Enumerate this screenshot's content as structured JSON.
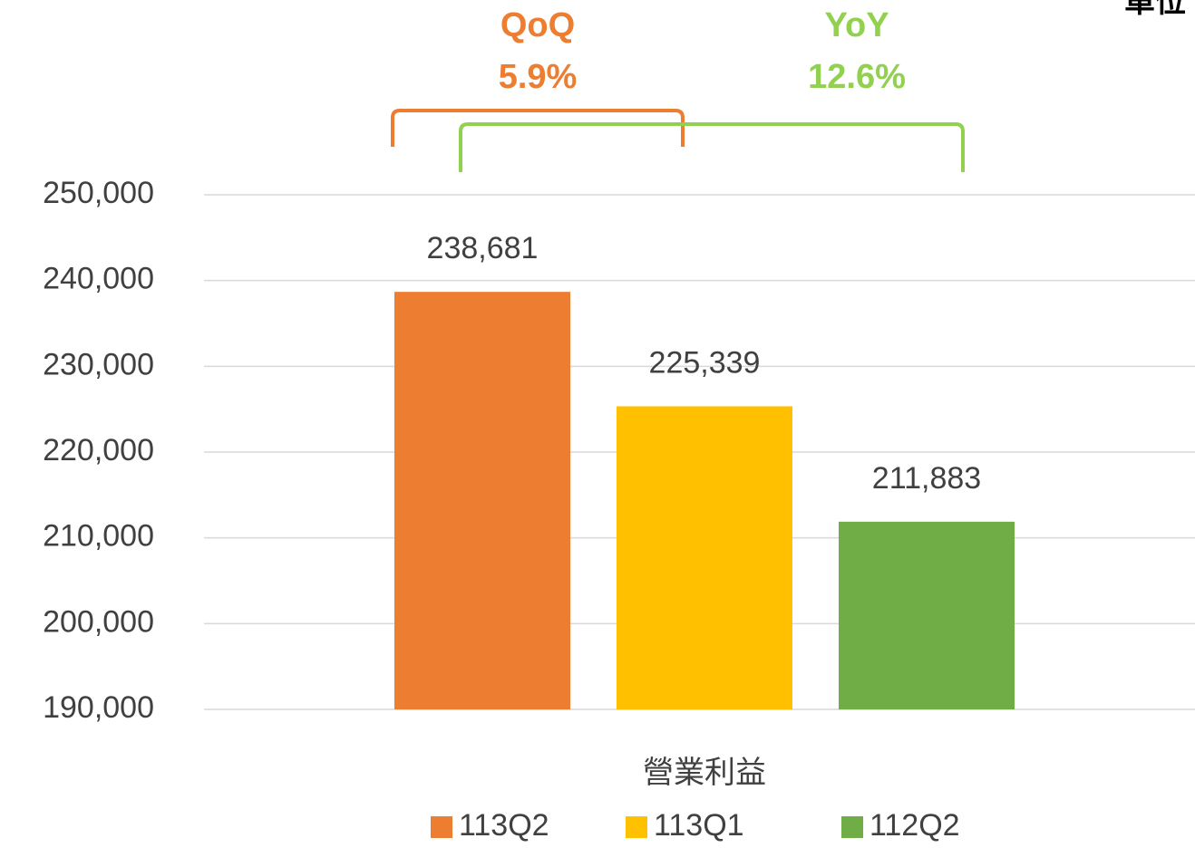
{
  "chart_data": {
    "type": "bar",
    "unit_note": "單位",
    "categories": [
      "營業利益"
    ],
    "series": [
      {
        "name": "113Q2",
        "color": "#ed7d31",
        "values": [
          238681
        ],
        "value_labels": [
          "238,681"
        ]
      },
      {
        "name": "113Q1",
        "color": "#ffc000",
        "values": [
          225339
        ],
        "value_labels": [
          "225,339"
        ]
      },
      {
        "name": "112Q2",
        "color": "#70ad47",
        "values": [
          211883
        ],
        "value_labels": [
          "211,883"
        ]
      }
    ],
    "annotations": [
      {
        "title": "QoQ",
        "text": "5.9%",
        "color": "#ed7d31"
      },
      {
        "title": "YoY",
        "text": "12.6%",
        "color": "#92d050"
      }
    ],
    "ylim": [
      190000,
      250000
    ],
    "yticks": [
      {
        "value": 190000,
        "label": "190,000"
      },
      {
        "value": 200000,
        "label": "200,000"
      },
      {
        "value": 210000,
        "label": "210,000"
      },
      {
        "value": 220000,
        "label": "220,000"
      },
      {
        "value": 230000,
        "label": "230,000"
      },
      {
        "value": 240000,
        "label": "240,000"
      },
      {
        "value": 250000,
        "label": "250,000"
      }
    ],
    "grid": true,
    "legend": "bottom"
  }
}
